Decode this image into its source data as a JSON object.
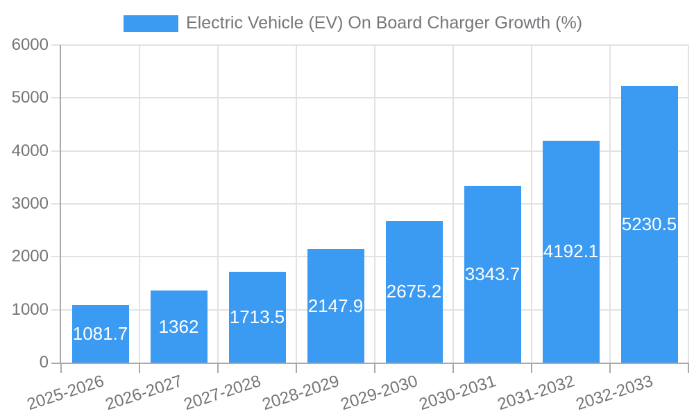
{
  "legend": {
    "label": "Electric Vehicle (EV) On Board Charger Growth (%)"
  },
  "chart_data": {
    "type": "bar",
    "title": "Electric Vehicle (EV) On Board Charger Growth (%)",
    "categories": [
      "2025-2026",
      "2026-2027",
      "2027-2028",
      "2028-2029",
      "2029-2030",
      "2030-2031",
      "2031-2032",
      "2032-2033"
    ],
    "series": [
      {
        "name": "Electric Vehicle (EV) On Board Charger Growth (%)",
        "values": [
          1081.7,
          1362,
          1713.5,
          2147.9,
          2675.2,
          3343.7,
          4192.1,
          5230.5
        ],
        "value_labels": [
          "1081.7",
          "1362",
          "1713.5",
          "2147.9",
          "2675.2",
          "3343.7",
          "4192.1",
          "5230.5"
        ],
        "color": "#3B9AF1"
      }
    ],
    "xlabel": "",
    "ylabel": "",
    "ylim": [
      0,
      6000
    ],
    "yticks": [
      0,
      1000,
      2000,
      3000,
      4000,
      5000,
      6000
    ],
    "grid": true,
    "legend_position": "top",
    "colors": {
      "bar": "#3B9AF1",
      "grid": "#E2E2E2",
      "axis": "#A9A9A9",
      "tick_text": "#757575",
      "value_label": "#FFFFFF",
      "background": "#FFFFFF"
    }
  }
}
